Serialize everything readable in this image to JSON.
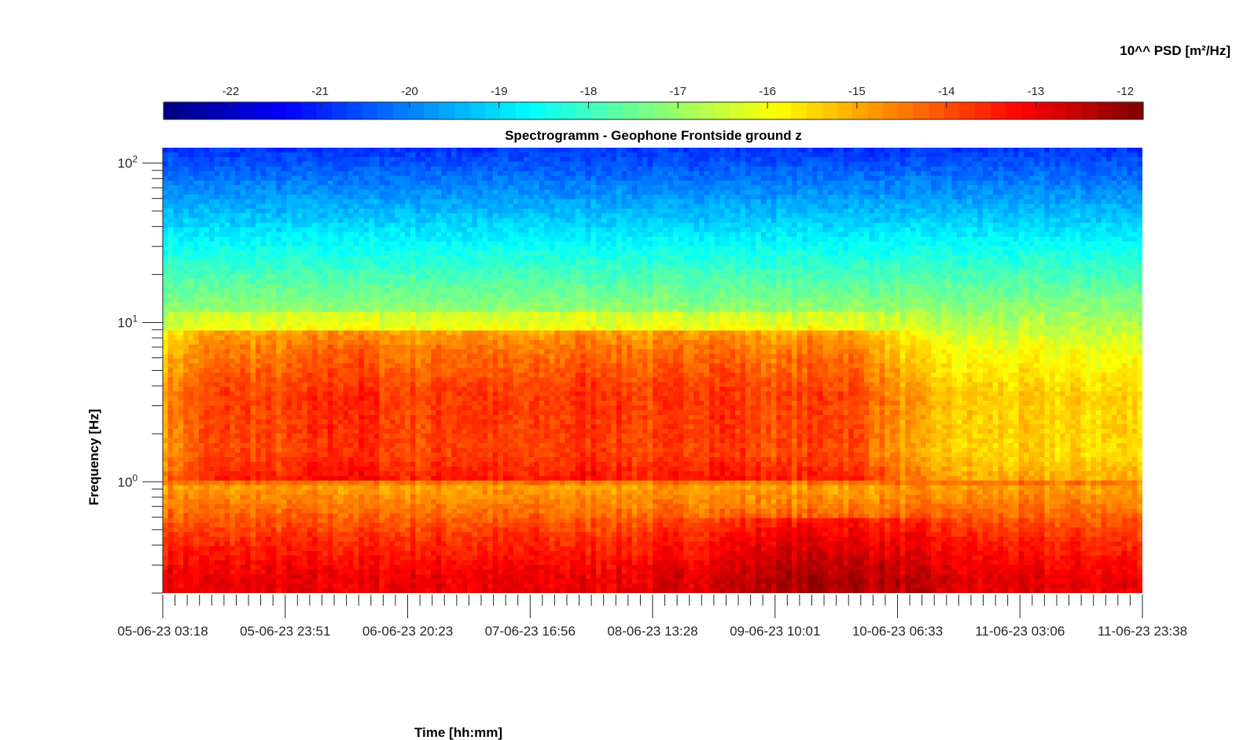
{
  "chart_data": {
    "type": "heatmap",
    "title": "Spectrogramm - Geophone Frontside ground z",
    "xlabel": "Time [hh:mm]",
    "ylabel": "Frequency [Hz]",
    "x_tick_labels": [
      "05-06-23 03:18",
      "05-06-23 23:51",
      "06-06-23 20:23",
      "07-06-23 16:56",
      "08-06-23 13:28",
      "09-06-23 10:01",
      "10-06-23 06:33",
      "11-06-23 03:06",
      "11-06-23 23:38"
    ],
    "y_scale": "log",
    "y_ticks": [
      {
        "base": "10",
        "exp": "0",
        "value": 1
      },
      {
        "base": "10",
        "exp": "1",
        "value": 10
      },
      {
        "base": "10",
        "exp": "2",
        "value": 100
      }
    ],
    "ylim": [
      0.2,
      125
    ],
    "colorbar": {
      "label": "10^^ PSD [m²/Hz]",
      "tick_labels": [
        "-22",
        "-21",
        "-20",
        "-19",
        "-18",
        "-17",
        "-16",
        "-15",
        "-14",
        "-13",
        "-12"
      ],
      "range": [
        -22.75,
        -11.8
      ],
      "colormap": "jet"
    },
    "log_psd_profile_by_frequency": [
      {
        "f": 0.25,
        "psd": -13.0
      },
      {
        "f": 0.45,
        "psd": -13.7
      },
      {
        "f": 0.75,
        "psd": -14.6
      },
      {
        "f": 1.5,
        "psd": -15.5
      },
      {
        "f": 3.5,
        "psd": -15.4
      },
      {
        "f": 7.0,
        "psd": -16.1
      },
      {
        "f": 9.0,
        "psd": -16.6
      },
      {
        "f": 20,
        "psd": -17.9
      },
      {
        "f": 50,
        "psd": -19.4
      },
      {
        "f": 120,
        "psd": -20.8
      }
    ],
    "activity_bursts": [
      {
        "day": 0,
        "log_psd_increase": 1.5
      },
      {
        "day": 1,
        "log_psd_increase": 1.8
      },
      {
        "day": 2,
        "log_psd_increase": 1.6
      },
      {
        "day": 3,
        "log_psd_increase": 1.7
      },
      {
        "day": 4,
        "log_psd_increase": 1.7
      },
      {
        "day": 5,
        "log_psd_increase": 1.6
      }
    ]
  }
}
